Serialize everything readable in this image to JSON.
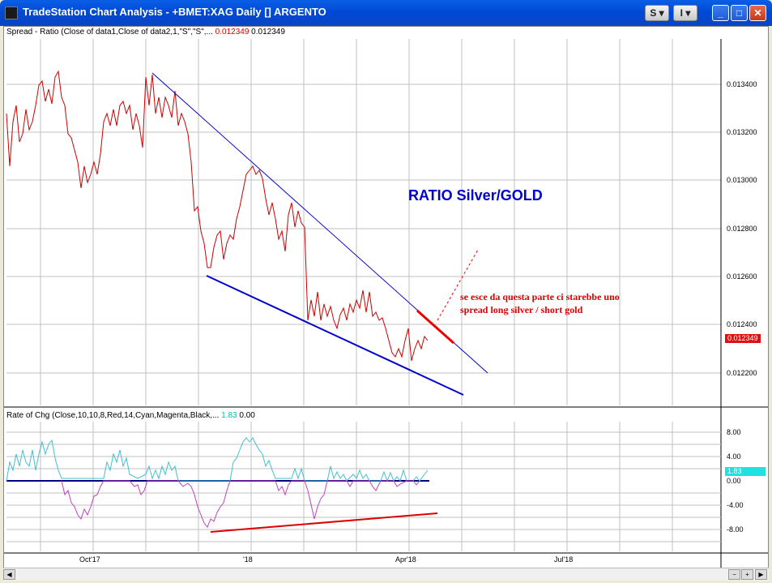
{
  "window": {
    "title": "TradeStation Chart Analysis - +BMET:XAG Daily [] ARGENTO",
    "buttons": {
      "s_menu": "S",
      "i_menu": "I"
    }
  },
  "upper_indicator": {
    "label": "Spread - Ratio (Close of data1,Close of data2,1,\"S\",\"S\",...",
    "value1": "0.012349",
    "value2": "0.012349",
    "current_value_badge": "0.012349",
    "y_ticks": [
      "0.013400",
      "0.013200",
      "0.013000",
      "0.012800",
      "0.012600",
      "0.012400",
      "0.012200"
    ]
  },
  "lower_indicator": {
    "label": "Rate of Chg (Close,10,10,8,Red,14,Cyan,Magenta,Black,...",
    "value1": "1.83",
    "value2": "0.00",
    "current_value_badge": "1.83",
    "y_ticks": [
      "8.00",
      "4.00",
      "0.00",
      "-4.00",
      "-8.00"
    ]
  },
  "x_axis": {
    "ticks": [
      "Oct'17",
      "'18",
      "Apr'18",
      "Jul'18"
    ]
  },
  "annotations": {
    "heading": "RATIO Silver/GOLD",
    "note_line1": "se esce da questa parte ci starebbe uno",
    "note_line2": "spread long silver / short gold"
  },
  "colors": {
    "price_line": "#cc0000",
    "trend_upper": "#0000cc",
    "trend_lower": "#0000cc",
    "breakout": "#ee0000",
    "roc_up": "#40c0d0",
    "roc_down": "#c040c0",
    "zero_line": "#000080",
    "badge_red": "#e01010",
    "badge_cyan": "#20e0e0"
  }
}
